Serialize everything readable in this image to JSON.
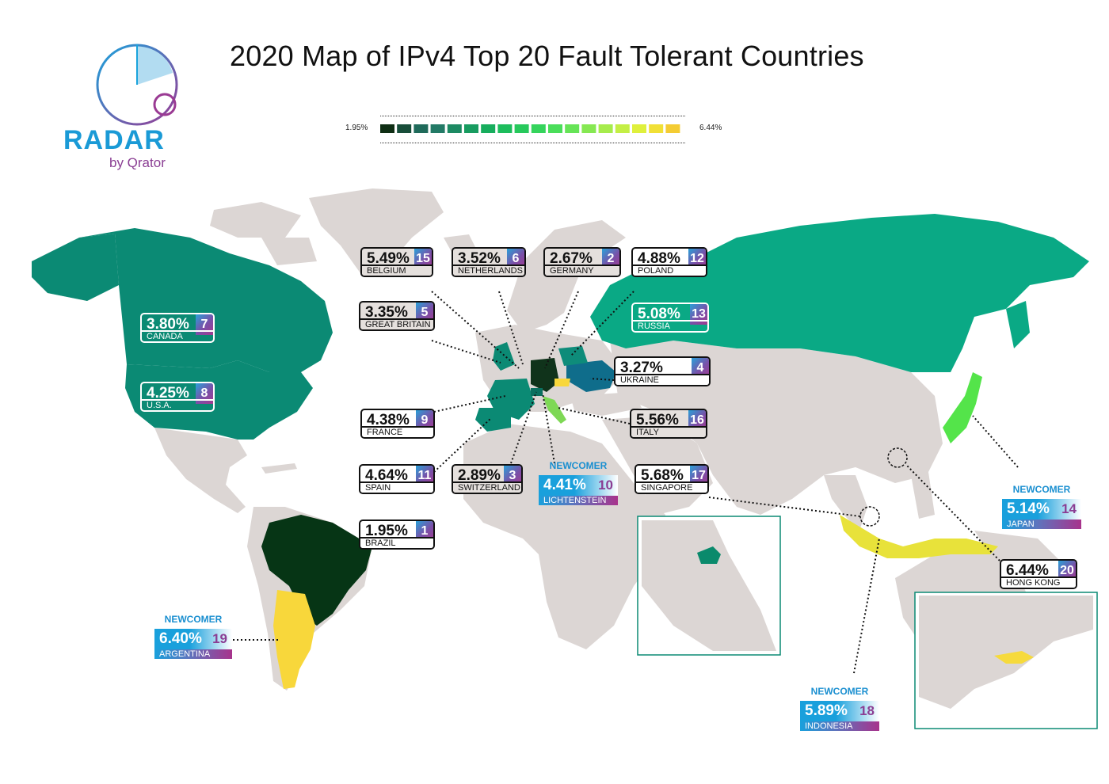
{
  "title": "2020 Map of IPv4 Top 20 Fault Tolerant Countries",
  "logo": {
    "brand": "RADAR",
    "sub": "by Qrator"
  },
  "legend": {
    "min": "1.95%",
    "max": "6.44%",
    "swatches": [
      "#0f2e14",
      "#184e3a",
      "#1f6a5a",
      "#237a66",
      "#1d8a63",
      "#189c60",
      "#17ad5d",
      "#1dbd5c",
      "#27c95c",
      "#35d45c",
      "#4ade5a",
      "#66e457",
      "#86e852",
      "#a6ec4c",
      "#c4ef45",
      "#dff03c",
      "#f1e036",
      "#f4cc33"
    ]
  },
  "colors": {
    "land": "#dcd6d4",
    "canada_usa": "#0b8a74",
    "russia": "#0aa985",
    "brazil": "#063515",
    "argentina": "#f8d73b",
    "japan": "#54e44a",
    "indonesia": "#e8e23a",
    "hongkong": "#f6da3c",
    "ukraine": "#0f6d8b",
    "germany": "#10331b",
    "poland": "#0e8c7a",
    "italy": "#7ed855",
    "singapore_inset": "#0a8a6c"
  },
  "newcomer_label": "NEWCOMER",
  "countries": [
    {
      "id": "belgium",
      "pct": "5.49%",
      "rank": "15",
      "name": "BELGIUM",
      "style": "grey"
    },
    {
      "id": "netherlands",
      "pct": "3.52%",
      "rank": "6",
      "name": "NETHERLANDS",
      "style": "grey"
    },
    {
      "id": "germany",
      "pct": "2.67%",
      "rank": "2",
      "name": "GERMANY",
      "style": "grey"
    },
    {
      "id": "poland",
      "pct": "4.88%",
      "rank": "12",
      "name": "POLAND",
      "style": "plain"
    },
    {
      "id": "great_britain",
      "pct": "3.35%",
      "rank": "5",
      "name": "GREAT BRITAIN",
      "style": "grey"
    },
    {
      "id": "russia",
      "pct": "5.08%",
      "rank": "13",
      "name": "RUSSIA",
      "style": "white"
    },
    {
      "id": "canada",
      "pct": "3.80%",
      "rank": "7",
      "name": "CANADA",
      "style": "white"
    },
    {
      "id": "usa",
      "pct": "4.25%",
      "rank": "8",
      "name": "U.S.A.",
      "style": "white"
    },
    {
      "id": "ukraine",
      "pct": "3.27%",
      "rank": "4",
      "name": "UKRAINE",
      "style": "plain"
    },
    {
      "id": "france",
      "pct": "4.38%",
      "rank": "9",
      "name": "FRANCE",
      "style": "plain"
    },
    {
      "id": "italy",
      "pct": "5.56%",
      "rank": "16",
      "name": "ITALY",
      "style": "grey"
    },
    {
      "id": "spain",
      "pct": "4.64%",
      "rank": "11",
      "name": "SPAIN",
      "style": "plain"
    },
    {
      "id": "switzerland",
      "pct": "2.89%",
      "rank": "3",
      "name": "SWITZERLAND",
      "style": "grey"
    },
    {
      "id": "singapore",
      "pct": "5.68%",
      "rank": "17",
      "name": "SINGAPORE",
      "style": "plain"
    },
    {
      "id": "brazil",
      "pct": "1.95%",
      "rank": "1",
      "name": "BRAZIL",
      "style": "plain"
    },
    {
      "id": "hong_kong",
      "pct": "6.44%",
      "rank": "20",
      "name": "HONG KONG",
      "style": "plain"
    }
  ],
  "newcomers": [
    {
      "id": "lichtenstein",
      "pct": "4.41%",
      "rank": "10",
      "name": "LICHTENSTEIN"
    },
    {
      "id": "japan",
      "pct": "5.14%",
      "rank": "14",
      "name": "JAPAN"
    },
    {
      "id": "argentina",
      "pct": "6.40%",
      "rank": "19",
      "name": "ARGENTINA"
    },
    {
      "id": "indonesia",
      "pct": "5.89%",
      "rank": "18",
      "name": "INDONESIA"
    }
  ]
}
